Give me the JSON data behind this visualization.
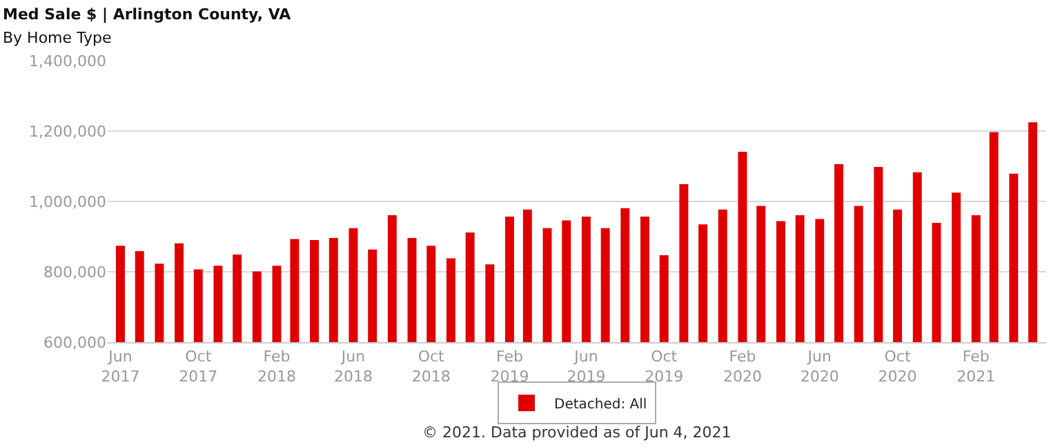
{
  "chart_data": {
    "type": "bar",
    "title": "Med Sale $ | Arlington County, VA",
    "subtitle": "By Home Type",
    "x": [
      "2017-06",
      "2017-07",
      "2017-08",
      "2017-09",
      "2017-10",
      "2017-11",
      "2017-12",
      "2018-01",
      "2018-02",
      "2018-03",
      "2018-04",
      "2018-05",
      "2018-06",
      "2018-07",
      "2018-08",
      "2018-09",
      "2018-10",
      "2018-11",
      "2018-12",
      "2019-01",
      "2019-02",
      "2019-03",
      "2019-04",
      "2019-05",
      "2019-06",
      "2019-07",
      "2019-08",
      "2019-09",
      "2019-10",
      "2019-11",
      "2019-12",
      "2020-01",
      "2020-02",
      "2020-03",
      "2020-04",
      "2020-05",
      "2020-06",
      "2020-07",
      "2020-08",
      "2020-09",
      "2020-10",
      "2020-11",
      "2020-12",
      "2021-01",
      "2021-02",
      "2021-03",
      "2021-04",
      "2021-05"
    ],
    "series": [
      {
        "name": "Detached: All",
        "color": "#e00000",
        "values": [
          874000,
          859000,
          823000,
          881000,
          807000,
          817000,
          849000,
          801000,
          817000,
          893000,
          890000,
          896000,
          924000,
          863000,
          961000,
          896000,
          874000,
          838000,
          912000,
          821000,
          957000,
          977000,
          924000,
          946000,
          957000,
          924000,
          981000,
          957000,
          847000,
          1049000,
          935000,
          977000,
          1141000,
          987000,
          944000,
          961000,
          950000,
          1106000,
          987000,
          1098000,
          977000,
          1083000,
          939000,
          1025000,
          961000,
          1197000,
          1079000,
          1225000
        ]
      }
    ],
    "ylim": [
      600000,
      1400000
    ],
    "yticks": [
      {
        "value": 600000,
        "label": "600,000"
      },
      {
        "value": 800000,
        "label": "800,000"
      },
      {
        "value": 1000000,
        "label": "1,000,000"
      },
      {
        "value": 1200000,
        "label": "1,200,000"
      },
      {
        "value": 1400000,
        "label": "1,400,000"
      }
    ],
    "xlim": [
      "2017-05-12",
      "2021-05-22"
    ],
    "xticks": [
      {
        "value": "2017-06",
        "label": "Jun\n2017"
      },
      {
        "value": "2017-10",
        "label": "Oct\n2017"
      },
      {
        "value": "2018-02",
        "label": "Feb\n2018"
      },
      {
        "value": "2018-06",
        "label": "Jun\n2018"
      },
      {
        "value": "2018-10",
        "label": "Oct\n2018"
      },
      {
        "value": "2019-02",
        "label": "Feb\n2019"
      },
      {
        "value": "2019-06",
        "label": "Jun\n2019"
      },
      {
        "value": "2019-10",
        "label": "Oct\n2019"
      },
      {
        "value": "2020-02",
        "label": "Feb\n2020"
      },
      {
        "value": "2020-06",
        "label": "Jun\n2020"
      },
      {
        "value": "2020-10",
        "label": "Oct\n2020"
      },
      {
        "value": "2021-02",
        "label": "Feb\n2021"
      }
    ],
    "grid": "y",
    "legend": "bottom",
    "annotations": [
      "© 2021. Data provided as of Jun 4, 2021"
    ]
  }
}
